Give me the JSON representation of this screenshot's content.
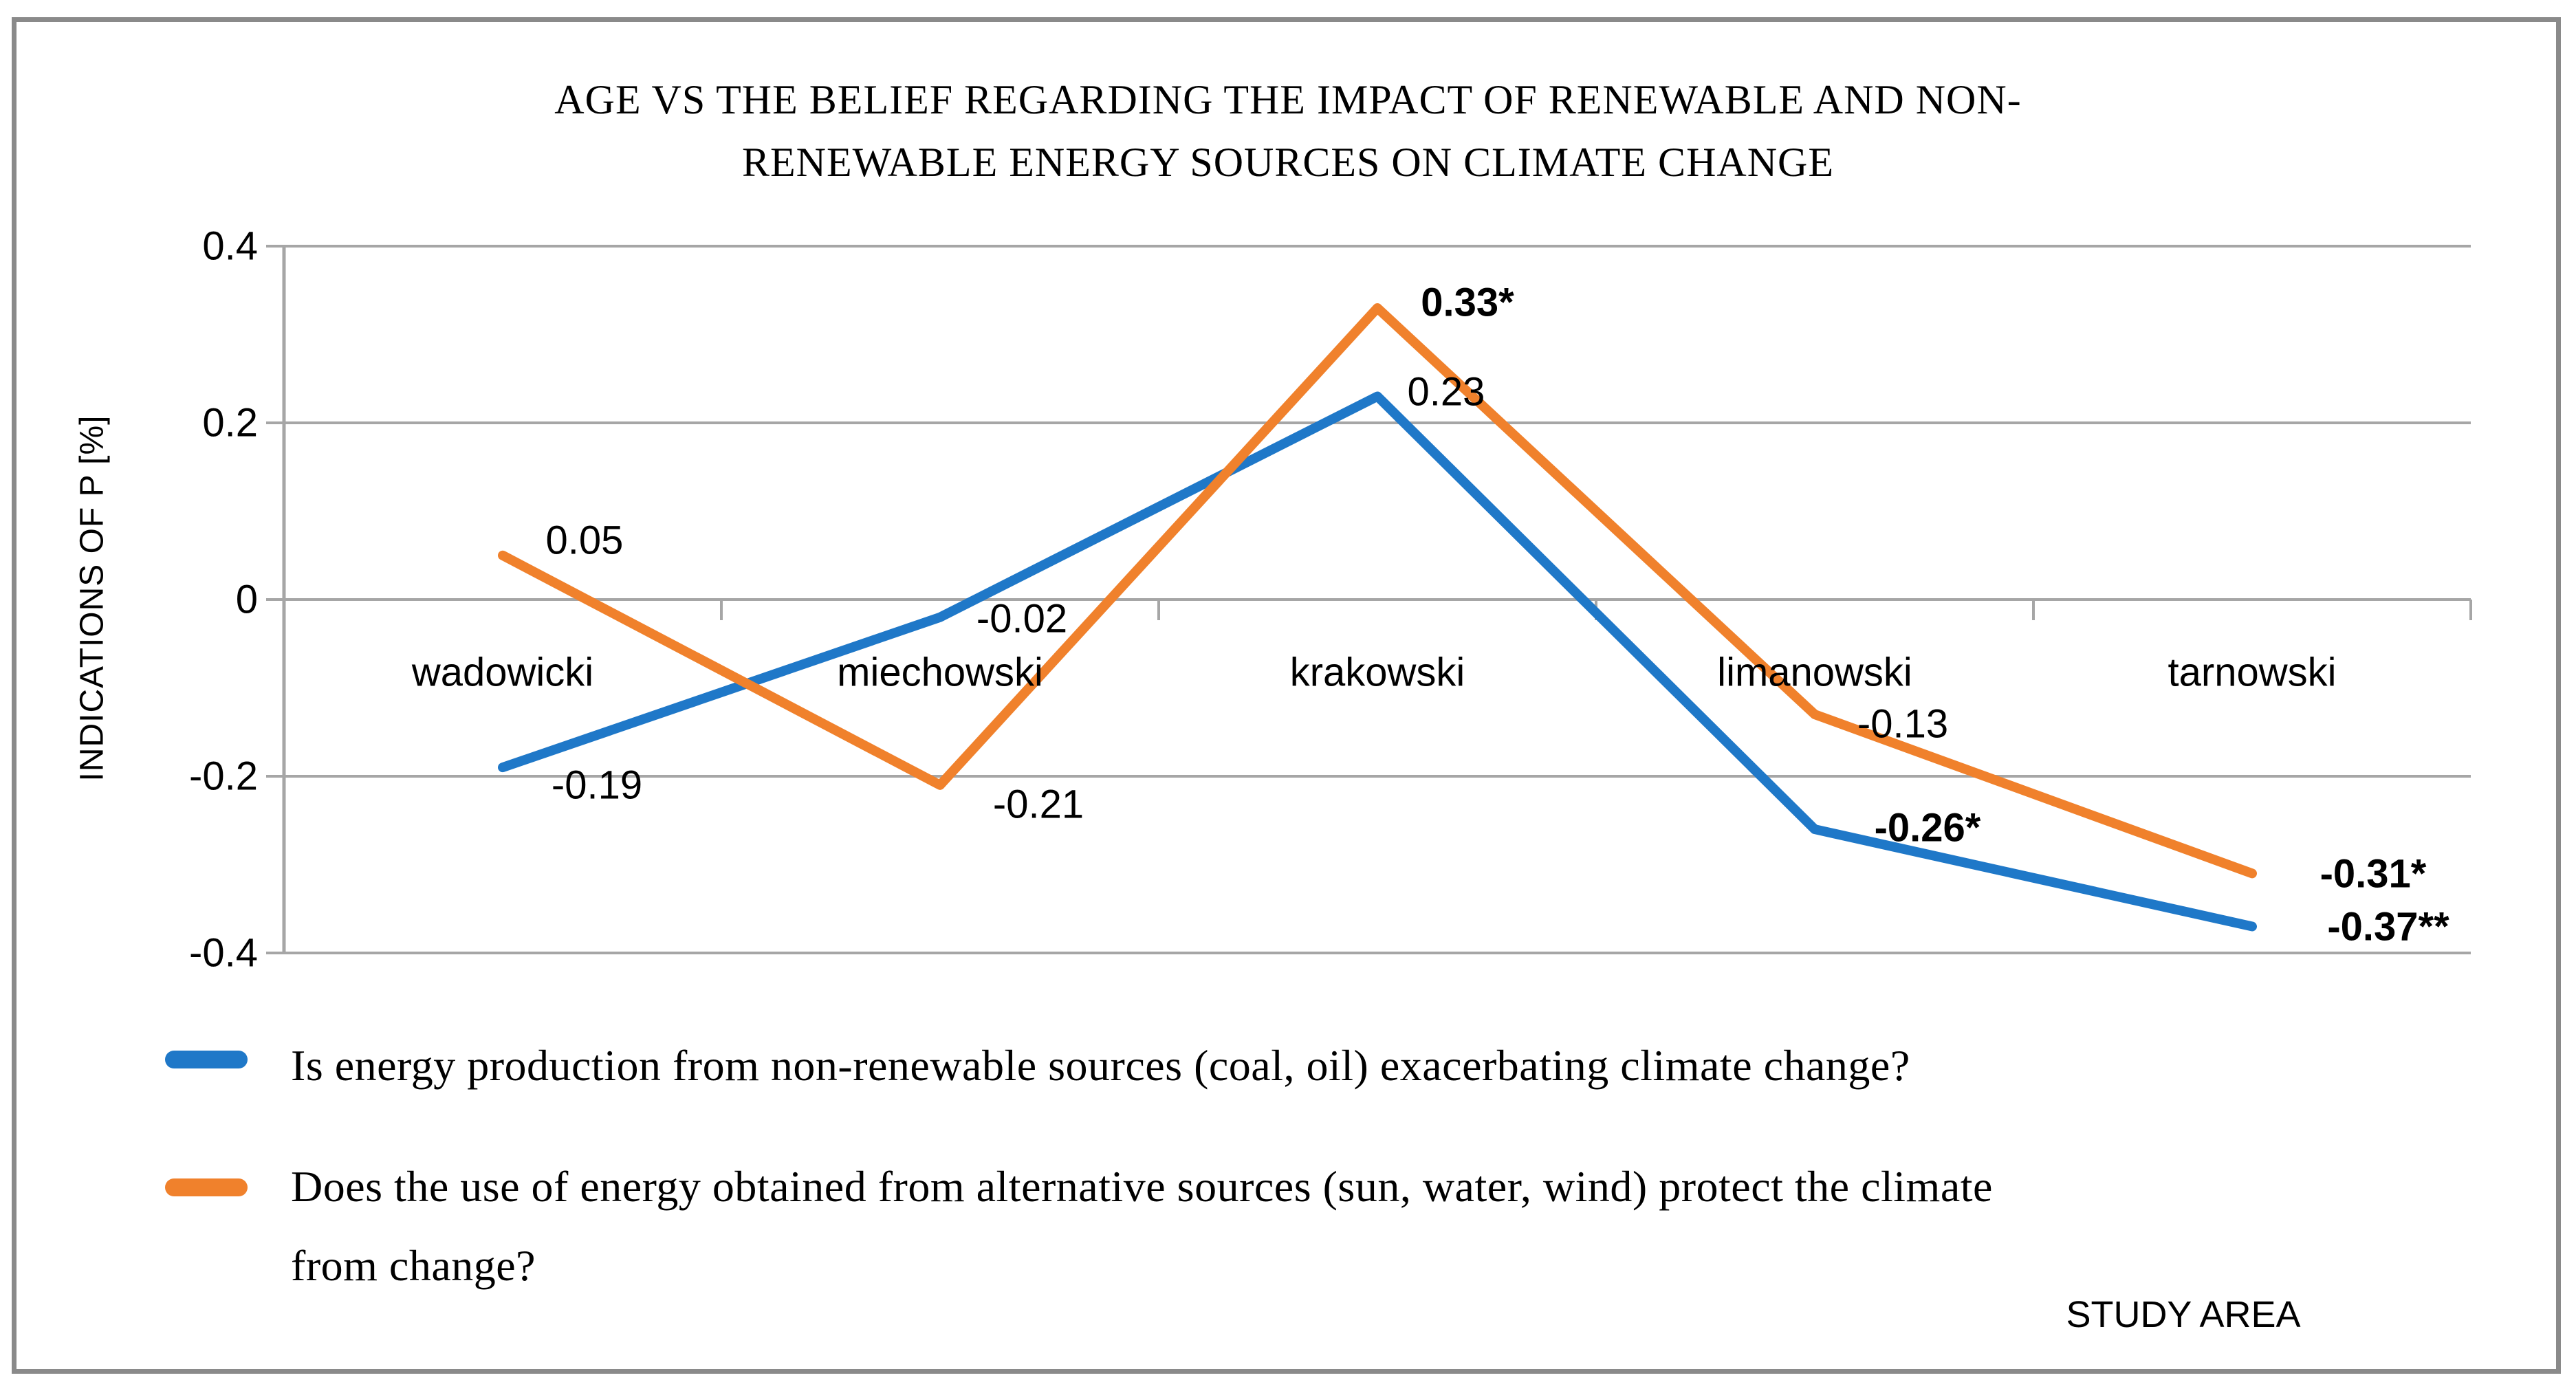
{
  "chart_data": {
    "type": "line",
    "title": "AGE VS THE BELIEF REGARDING THE IMPACT OF RENEWABLE AND NON-RENEWABLE ENERGY SOURCES ON CLIMATE CHANGE",
    "title_lines": [
      "AGE VS THE BELIEF REGARDING THE IMPACT OF RENEWABLE AND NON-",
      "RENEWABLE ENERGY SOURCES ON CLIMATE CHANGE"
    ],
    "y_axis": {
      "label": "INDICATIONS OF P [%]",
      "ticks": [
        {
          "value": 0.4,
          "label": "0.4"
        },
        {
          "value": 0.2,
          "label": "0.2"
        },
        {
          "value": 0,
          "label": "0"
        },
        {
          "value": -0.2,
          "label": "-0.2"
        },
        {
          "value": -0.4,
          "label": "-0.4"
        }
      ],
      "range": [
        -0.4,
        0.4
      ]
    },
    "x_axis": {
      "label": "STUDY AREA",
      "categories": [
        "wadowicki",
        "miechowski",
        "krakowski",
        "limanowski",
        "tarnowski"
      ]
    },
    "grid": true,
    "legend_position": "bottom-left",
    "series": [
      {
        "name": "Is energy production from non-renewable sources (coal, oil) exacerbating climate change?",
        "legend_lines": [
          "Is energy production from non-renewable sources (coal, oil) exacerbating climate change?"
        ],
        "color": "#1F78C8",
        "values": [
          -0.19,
          -0.02,
          0.23,
          -0.26,
          -0.37
        ],
        "point_labels": [
          {
            "text": "-0.19",
            "bold": false
          },
          {
            "text": "-0.02",
            "bold": false
          },
          {
            "text": "0.23",
            "bold": false
          },
          {
            "text": "-0.26*",
            "bold": true
          },
          {
            "text": "-0.37**",
            "bold": true
          }
        ]
      },
      {
        "name": "Does the use of energy obtained from alternative sources (sun, water, wind) protect the climate from change?",
        "legend_lines": [
          "Does the use of energy obtained from alternative sources (sun, water, wind) protect the climate",
          "from change?"
        ],
        "color": "#F0812C",
        "values": [
          0.05,
          -0.21,
          0.33,
          -0.13,
          -0.31
        ],
        "point_labels": [
          {
            "text": "0.05",
            "bold": false
          },
          {
            "text": "-0.21",
            "bold": false
          },
          {
            "text": "0.33*",
            "bold": true
          },
          {
            "text": "-0.13",
            "bold": false
          },
          {
            "text": "-0.31*",
            "bold": true
          }
        ]
      }
    ]
  },
  "colors": {
    "frame": "#8A8A8A",
    "grid": "#A6A6A6",
    "text": "#000000",
    "background": "#FFFFFF"
  }
}
